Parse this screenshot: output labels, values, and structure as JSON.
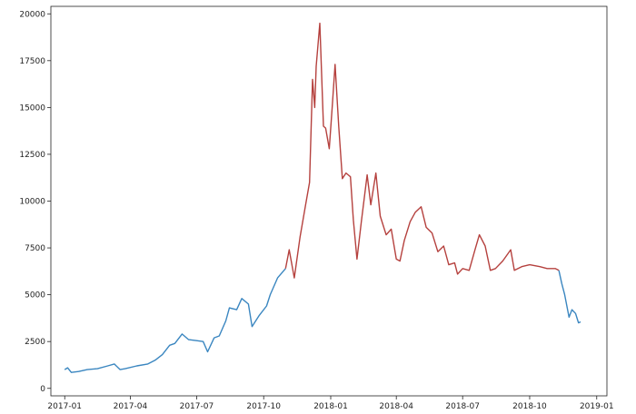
{
  "chart_data": {
    "type": "line",
    "title": "",
    "xlabel": "",
    "ylabel": "",
    "x_axis": {
      "type": "date",
      "range": [
        "2016-12-13",
        "2019-01-15"
      ],
      "ticks": [
        "2017-01",
        "2017-04",
        "2017-07",
        "2017-10",
        "2018-01",
        "2018-04",
        "2018-07",
        "2018-10",
        "2019-01"
      ]
    },
    "y_axis": {
      "range": [
        -400,
        20400
      ],
      "ticks": [
        0,
        2500,
        5000,
        7500,
        10000,
        12500,
        15000,
        17500,
        20000
      ]
    },
    "grid": false,
    "colors": {
      "segment_low": "#3a86c0",
      "segment_high": "#b5413e"
    },
    "series": [
      {
        "color": "#3a86c0",
        "points": [
          [
            "2017-01-01",
            1000
          ],
          [
            "2017-01-05",
            1100
          ],
          [
            "2017-01-10",
            850
          ],
          [
            "2017-01-20",
            900
          ],
          [
            "2017-02-01",
            1000
          ],
          [
            "2017-02-15",
            1050
          ],
          [
            "2017-03-01",
            1200
          ],
          [
            "2017-03-10",
            1300
          ],
          [
            "2017-03-18",
            1000
          ],
          [
            "2017-03-25",
            1050
          ],
          [
            "2017-04-10",
            1200
          ],
          [
            "2017-04-25",
            1300
          ],
          [
            "2017-05-05",
            1500
          ],
          [
            "2017-05-15",
            1800
          ],
          [
            "2017-05-25",
            2300
          ],
          [
            "2017-06-01",
            2400
          ],
          [
            "2017-06-11",
            2900
          ],
          [
            "2017-06-20",
            2600
          ],
          [
            "2017-07-01",
            2550
          ],
          [
            "2017-07-10",
            2500
          ],
          [
            "2017-07-16",
            1950
          ],
          [
            "2017-07-25",
            2700
          ],
          [
            "2017-08-01",
            2800
          ],
          [
            "2017-08-10",
            3600
          ],
          [
            "2017-08-15",
            4300
          ],
          [
            "2017-08-25",
            4200
          ],
          [
            "2017-09-01",
            4800
          ],
          [
            "2017-09-10",
            4500
          ],
          [
            "2017-09-15",
            3300
          ],
          [
            "2017-09-25",
            3900
          ],
          [
            "2017-10-05",
            4400
          ],
          [
            "2017-10-10",
            5000
          ],
          [
            "2017-10-20",
            5900
          ],
          [
            "2017-10-31",
            6400
          ]
        ]
      },
      {
        "color": "#b5413e",
        "points": [
          [
            "2017-10-31",
            6400
          ],
          [
            "2017-11-05",
            7400
          ],
          [
            "2017-11-12",
            5900
          ],
          [
            "2017-11-20",
            8100
          ],
          [
            "2017-11-28",
            9900
          ],
          [
            "2017-12-03",
            11000
          ],
          [
            "2017-12-07",
            16500
          ],
          [
            "2017-12-10",
            15000
          ],
          [
            "2017-12-12",
            17200
          ],
          [
            "2017-12-17",
            19500
          ],
          [
            "2017-12-22",
            14000
          ],
          [
            "2017-12-25",
            13900
          ],
          [
            "2017-12-30",
            12800
          ],
          [
            "2018-01-03",
            15000
          ],
          [
            "2018-01-07",
            17300
          ],
          [
            "2018-01-12",
            14000
          ],
          [
            "2018-01-17",
            11200
          ],
          [
            "2018-01-22",
            11500
          ],
          [
            "2018-01-28",
            11300
          ],
          [
            "2018-02-01",
            9000
          ],
          [
            "2018-02-06",
            6900
          ],
          [
            "2018-02-12",
            8900
          ],
          [
            "2018-02-20",
            11400
          ],
          [
            "2018-02-25",
            9800
          ],
          [
            "2018-03-04",
            11500
          ],
          [
            "2018-03-10",
            9200
          ],
          [
            "2018-03-18",
            8200
          ],
          [
            "2018-03-25",
            8500
          ],
          [
            "2018-04-01",
            6900
          ],
          [
            "2018-04-06",
            6800
          ],
          [
            "2018-04-12",
            7900
          ],
          [
            "2018-04-20",
            8900
          ],
          [
            "2018-04-27",
            9400
          ],
          [
            "2018-05-05",
            9700
          ],
          [
            "2018-05-12",
            8600
          ],
          [
            "2018-05-20",
            8300
          ],
          [
            "2018-05-28",
            7300
          ],
          [
            "2018-06-05",
            7600
          ],
          [
            "2018-06-12",
            6600
          ],
          [
            "2018-06-20",
            6700
          ],
          [
            "2018-06-24",
            6100
          ],
          [
            "2018-07-01",
            6400
          ],
          [
            "2018-07-10",
            6300
          ],
          [
            "2018-07-18",
            7400
          ],
          [
            "2018-07-24",
            8200
          ],
          [
            "2018-08-01",
            7600
          ],
          [
            "2018-08-08",
            6300
          ],
          [
            "2018-08-15",
            6400
          ],
          [
            "2018-08-25",
            6800
          ],
          [
            "2018-09-05",
            7400
          ],
          [
            "2018-09-10",
            6300
          ],
          [
            "2018-09-20",
            6500
          ],
          [
            "2018-10-01",
            6600
          ],
          [
            "2018-10-15",
            6500
          ],
          [
            "2018-10-25",
            6400
          ],
          [
            "2018-11-05",
            6400
          ],
          [
            "2018-11-10",
            6300
          ]
        ]
      },
      {
        "color": "#3a86c0",
        "points": [
          [
            "2018-11-10",
            6300
          ],
          [
            "2018-11-14",
            5600
          ],
          [
            "2018-11-18",
            5000
          ],
          [
            "2018-11-20",
            4600
          ],
          [
            "2018-11-24",
            3800
          ],
          [
            "2018-11-28",
            4200
          ],
          [
            "2018-12-03",
            4000
          ],
          [
            "2018-12-07",
            3500
          ],
          [
            "2018-12-10",
            3550
          ]
        ]
      }
    ]
  }
}
